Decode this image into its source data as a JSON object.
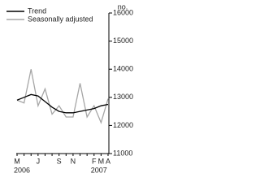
{
  "chart_data": {
    "type": "line",
    "y_unit": "no.",
    "categories": [
      "M",
      null,
      null,
      "J",
      null,
      null,
      "S",
      null,
      "N",
      null,
      null,
      "F",
      "M",
      "A"
    ],
    "year_labels": [
      "2006",
      null,
      null,
      null,
      null,
      null,
      null,
      null,
      null,
      null,
      null,
      "2007",
      null,
      null
    ],
    "series": [
      {
        "name": "Trend",
        "color": "#000000",
        "values": [
          12900,
          13000,
          13100,
          13050,
          12850,
          12650,
          12500,
          12450,
          12450,
          12500,
          12550,
          12600,
          12700,
          12750
        ]
      },
      {
        "name": "Seasonally adjusted",
        "color": "#a6a6a6",
        "values": [
          12900,
          12800,
          14000,
          12700,
          13300,
          12400,
          12700,
          12300,
          12300,
          13500,
          12300,
          12700,
          12100,
          12950
        ]
      }
    ],
    "ylim": [
      11000,
      16000
    ],
    "yticks": [
      11000,
      12000,
      13000,
      14000,
      15000,
      16000
    ],
    "legend": "top-left",
    "grid": false
  }
}
